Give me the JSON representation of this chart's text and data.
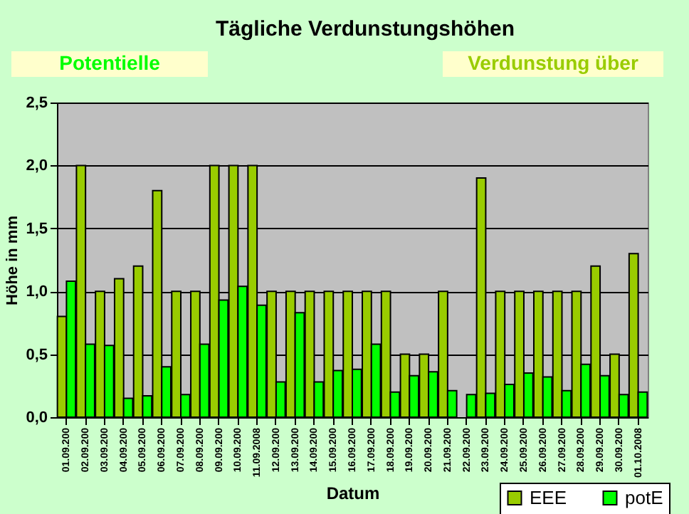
{
  "chart_data": {
    "type": "bar",
    "title": "Tägliche Verdunstungshöhen",
    "xlabel": "Datum",
    "ylabel": "Höhe in mm",
    "annotations": [
      "Potentielle",
      "Verdunstung über"
    ],
    "categories": [
      "01.09.200",
      "02.09.200",
      "03.09.200",
      "04.09.200",
      "05.09.200",
      "06.09.200",
      "07.09.200",
      "08.09.200",
      "09.09.200",
      "10.09.200",
      "11.09.2008",
      "12.09.200",
      "13.09.200",
      "14.09.200",
      "15.09.200",
      "16.09.200",
      "17.09.200",
      "18.09.200",
      "19.09.200",
      "20.09.200",
      "21.09.200",
      "22.09.200",
      "23.09.200",
      "24.09.200",
      "25.09.200",
      "26.09.200",
      "27.09.200",
      "28.09.200",
      "29.09.200",
      "30.09.200",
      "01.10.2008"
    ],
    "series": [
      {
        "name": "EEE",
        "color": "#99cc00",
        "values": [
          0.8,
          2.0,
          1.0,
          1.1,
          1.2,
          1.8,
          1.0,
          1.0,
          2.0,
          2.0,
          2.0,
          1.0,
          1.0,
          1.0,
          1.0,
          1.0,
          1.0,
          1.0,
          0.5,
          0.5,
          1.0,
          null,
          1.9,
          1.0,
          1.0,
          1.0,
          1.0,
          1.0,
          1.2,
          0.5,
          1.3
        ]
      },
      {
        "name": "potE",
        "color": "#00ff00",
        "values": [
          1.08,
          0.58,
          0.57,
          0.15,
          0.17,
          0.4,
          0.18,
          0.58,
          0.93,
          1.04,
          0.89,
          0.28,
          0.83,
          0.28,
          0.37,
          0.38,
          0.58,
          0.2,
          0.33,
          0.36,
          0.21,
          0.18,
          0.19,
          0.26,
          0.35,
          0.32,
          0.21,
          0.42,
          0.33,
          0.18,
          0.2
        ]
      }
    ],
    "ylim": [
      0,
      2.5
    ],
    "yticks": [
      {
        "value": 0,
        "label": "0,0"
      },
      {
        "value": 0.5,
        "label": "0,5"
      },
      {
        "value": 1,
        "label": "1,0"
      },
      {
        "value": 1.5,
        "label": "1,5"
      },
      {
        "value": 2,
        "label": "2,0"
      },
      {
        "value": 2.5,
        "label": "2,5"
      }
    ],
    "grid": "y",
    "legend": "bottom right"
  }
}
